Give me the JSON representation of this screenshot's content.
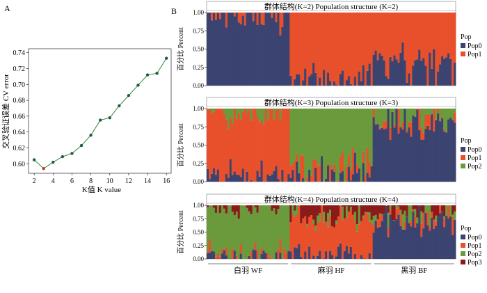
{
  "colors": {
    "pop0": "#3b4370",
    "pop1": "#e8502c",
    "pop2": "#6a9a3c",
    "pop3": "#8b1b1b",
    "line": "#2e8b2e",
    "marker": "#1f5a4a",
    "marker_min": "#c0392b"
  },
  "panel_a": {
    "label": "A"
  },
  "panel_b": {
    "label": "B"
  },
  "chart_data": [
    {
      "type": "line",
      "title": "",
      "xlabel": "K值  K value",
      "ylabel": "交叉验证误差  CV error",
      "x": [
        2,
        3,
        4,
        5,
        6,
        7,
        8,
        9,
        10,
        11,
        12,
        13,
        14,
        15,
        16
      ],
      "y": [
        0.605,
        0.594,
        0.602,
        0.609,
        0.613,
        0.623,
        0.636,
        0.655,
        0.658,
        0.673,
        0.686,
        0.699,
        0.712,
        0.714,
        0.733
      ],
      "xlim": [
        1.4,
        16.5
      ],
      "ylim": [
        0.588,
        0.745
      ],
      "xticks": [
        "2",
        "4",
        "6",
        "8",
        "10",
        "12",
        "14",
        "16"
      ],
      "yticks": [
        "0.60",
        "0.62",
        "0.64",
        "0.66",
        "0.68",
        "0.70",
        "0.72",
        "0.74"
      ],
      "min_point": {
        "x": 3,
        "y": 0.594
      }
    },
    {
      "type": "bar",
      "stacked": true,
      "title": "群体结构(K=2) Population structure (K=2)",
      "ylabel": "百分比 Percent",
      "ylim": [
        0,
        1
      ],
      "yticks": [
        "0.00",
        "0.25",
        "0.50",
        "0.75",
        "1.00"
      ],
      "legend_title": "Pop",
      "series_names": [
        "Pop0",
        "Pop1"
      ],
      "groups": [
        {
          "count": 40,
          "means": [
            0.96,
            0.04
          ]
        },
        {
          "count": 40,
          "means": [
            0.05,
            0.95
          ]
        },
        {
          "count": 40,
          "means": [
            0.3,
            0.7
          ]
        }
      ]
    },
    {
      "type": "bar",
      "stacked": true,
      "title": "群体结构(K=3) Population structure (K=3)",
      "ylabel": "百分比 Percent",
      "ylim": [
        0,
        1
      ],
      "yticks": [
        "0.00",
        "0.25",
        "0.50",
        "0.75",
        "1.00"
      ],
      "legend_title": "Pop",
      "series_names": [
        "Pop0",
        "Pop1",
        "Pop2"
      ],
      "groups": [
        {
          "count": 40,
          "means": [
            0.02,
            0.96,
            0.02
          ]
        },
        {
          "count": 40,
          "means": [
            0.03,
            0.15,
            0.82
          ]
        },
        {
          "count": 40,
          "means": [
            0.82,
            0.05,
            0.13
          ]
        }
      ]
    },
    {
      "type": "bar",
      "stacked": true,
      "title": "群体结构(K=4) Population structure (K=4)",
      "ylabel": "百分比 Percent",
      "ylim": [
        0,
        1
      ],
      "yticks": [
        "0.00",
        "0.25",
        "0.50",
        "0.75",
        "1.00"
      ],
      "legend_title": "Pop",
      "series_names": [
        "Pop0",
        "Pop1",
        "Pop2",
        "Pop3"
      ],
      "groups": [
        {
          "count": 40,
          "means": [
            0.01,
            0.03,
            0.95,
            0.01
          ]
        },
        {
          "count": 40,
          "means": [
            0.03,
            0.72,
            0.05,
            0.2
          ]
        },
        {
          "count": 40,
          "means": [
            0.78,
            0.06,
            0.07,
            0.09
          ]
        }
      ],
      "group_labels": [
        "白羽  WF",
        "麻羽  HF",
        "黑羽  BF"
      ]
    }
  ]
}
